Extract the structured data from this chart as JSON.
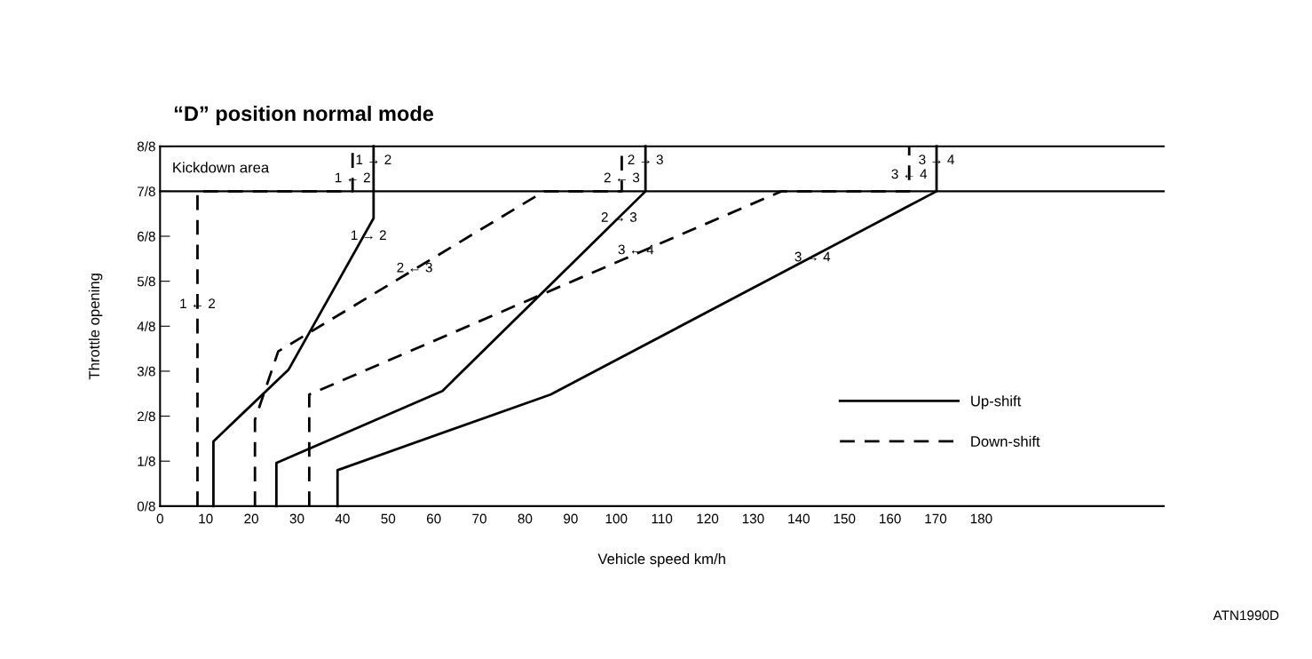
{
  "chart_data": {
    "type": "line",
    "title": "“D” position normal mode",
    "xlabel": "Vehicle speed km/h",
    "ylabel": "Throttle opening",
    "xlim": [
      0,
      220
    ],
    "xticks": [
      0,
      10,
      20,
      30,
      40,
      50,
      60,
      70,
      80,
      90,
      100,
      110,
      120,
      130,
      140,
      150,
      160,
      170,
      180
    ],
    "ylim": [
      0,
      1
    ],
    "yticks": [
      {
        "value": 0,
        "label": "0/8"
      },
      {
        "value": 0.125,
        "label": "1/8"
      },
      {
        "value": 0.25,
        "label": "2/8"
      },
      {
        "value": 0.375,
        "label": "3/8"
      },
      {
        "value": 0.5,
        "label": "4/8"
      },
      {
        "value": 0.625,
        "label": "5/8"
      },
      {
        "value": 0.75,
        "label": "6/8"
      },
      {
        "value": 0.875,
        "label": "7/8"
      },
      {
        "value": 1,
        "label": "8/8"
      }
    ],
    "grid": false,
    "legend": "bottom right",
    "marker": "none",
    "series": [
      {
        "name": "Up-shift",
        "color": "#000000",
        "line_style": "solid",
        "x": [
          11.7,
          11.7,
          28.2,
          46.8,
          46.8
        ],
        "values": [
          0,
          0.18,
          0.38,
          0.8,
          1
        ]
      },
      {
        "color": "#000000",
        "line_style": "solid",
        "x": [
          25.5,
          25.5,
          61.9,
          106.4,
          106.4
        ],
        "values": [
          0,
          0.12,
          0.32,
          0.875,
          1
        ]
      },
      {
        "color": "#000000",
        "line_style": "solid",
        "x": [
          38.9,
          38.9,
          85.6,
          170.2,
          170.2
        ],
        "values": [
          0,
          0.1,
          0.31,
          0.875,
          1
        ]
      },
      {
        "name": "Down-shift",
        "color": "#000000",
        "line_style": "dashed",
        "x": [
          8.2,
          8.2,
          42.2,
          42.2
        ],
        "values": [
          0,
          0.875,
          0.875,
          1
        ]
      },
      {
        "color": "#000000",
        "line_style": "dashed",
        "x": [
          20.8,
          20.8,
          25.9,
          84.2,
          101.2,
          101.2
        ],
        "values": [
          0,
          0.24,
          0.43,
          0.875,
          0.875,
          1
        ]
      },
      {
        "color": "#000000",
        "line_style": "dashed",
        "x": [
          32.7,
          32.7,
          136.2,
          164.2,
          164.2
        ],
        "values": [
          0,
          0.31,
          0.875,
          0.875,
          1
        ]
      }
    ],
    "ref_lines": [
      {
        "axis": "y",
        "value": 0.875,
        "color": "#000000"
      }
    ],
    "annotations": [
      "Kickdown area",
      {
        "text": "1 → 2",
        "x": 46.8,
        "y": 0.96
      },
      {
        "text": "1 ← 2",
        "x": 42.2,
        "y": 0.91
      },
      {
        "text": "1 → 2",
        "x": 45.7,
        "y": 0.75
      },
      {
        "text": "2 ← 3",
        "x": 55.8,
        "y": 0.66
      },
      {
        "text": "1 ← 2",
        "x": 8.2,
        "y": 0.56
      },
      {
        "text": "2 → 3",
        "x": 106.4,
        "y": 0.96
      },
      {
        "text": "2 ← 3",
        "x": 101.2,
        "y": 0.91
      },
      {
        "text": "2 → 3",
        "x": 100.6,
        "y": 0.8
      },
      {
        "text": "3 ← 4",
        "x": 104.3,
        "y": 0.71
      },
      {
        "text": "3 → 4",
        "x": 143,
        "y": 0.69
      },
      {
        "text": "3 → 4",
        "x": 170.2,
        "y": 0.96
      },
      {
        "text": "3 ← 4",
        "x": 164.2,
        "y": 0.92
      },
      "ATN1990D"
    ]
  }
}
